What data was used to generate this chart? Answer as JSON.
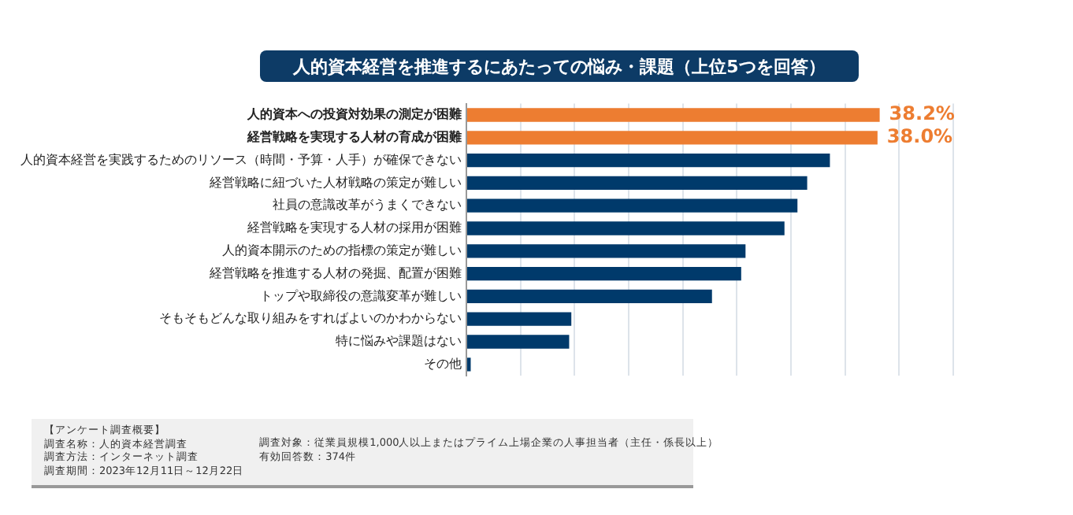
{
  "chart_data": {
    "type": "bar",
    "orientation": "horizontal",
    "title": "人的資本経営を推進するにあたっての悩み・課題（上位5つを回答）",
    "categories": [
      "人的資本への投資対効果の測定が困難",
      "経営戦略を実現する人材の育成が困難",
      "人的資本経営を実践するためのリソース（時間・予算・人手）が確保できない",
      "経営戦略に紐づいた人材戦略の策定が難しい",
      "社員の意識改革がうまくできない",
      "経営戦略を実現する人材の採用が困難",
      "人的資本開示のための指標の策定が難しい",
      "経営戦略を推進する人材の発掘、配置が困難",
      "トップや取締役の意識変革が難しい",
      "そもそもどんな取り組みをすればよいのかわからない",
      "特に悩みや課題はない",
      "その他"
    ],
    "values": [
      38.2,
      38.0,
      33.6,
      31.5,
      30.6,
      29.4,
      25.8,
      25.4,
      22.7,
      9.7,
      9.5,
      0.4
    ],
    "colors": [
      "#ed7d31",
      "#ed7d31",
      "#003a6b",
      "#003a6b",
      "#003a6b",
      "#003a6b",
      "#003a6b",
      "#003a6b",
      "#003a6b",
      "#003a6b",
      "#003a6b",
      "#003a6b"
    ],
    "value_labels": [
      "38.2%",
      "38.0%",
      null,
      null,
      null,
      null,
      null,
      null,
      null,
      null,
      null,
      null
    ],
    "xlim": [
      0,
      45
    ],
    "xticks": [
      {
        "value": 0,
        "label": null
      },
      {
        "value": 5,
        "label": null
      },
      {
        "value": 10,
        "label": null
      },
      {
        "value": 15,
        "label": null
      },
      {
        "value": 20,
        "label": null
      },
      {
        "value": 25,
        "label": null
      },
      {
        "value": 30,
        "label": null
      },
      {
        "value": 35,
        "label": null
      },
      {
        "value": 40,
        "label": null
      },
      {
        "value": 45,
        "label": null
      }
    ],
    "grid": "x",
    "legend": false,
    "annotations": [
      "【アンケート調査概要】",
      "調査名称：人的資本経営調査",
      "調査方法：インターネット調査",
      "調査期間：2023年12月11日～12月22日",
      "調査対象：従業員規模1,000人以上またはプライム上場企業の人事担当者（主任・係長以上）",
      "有効回答数：374件"
    ]
  }
}
